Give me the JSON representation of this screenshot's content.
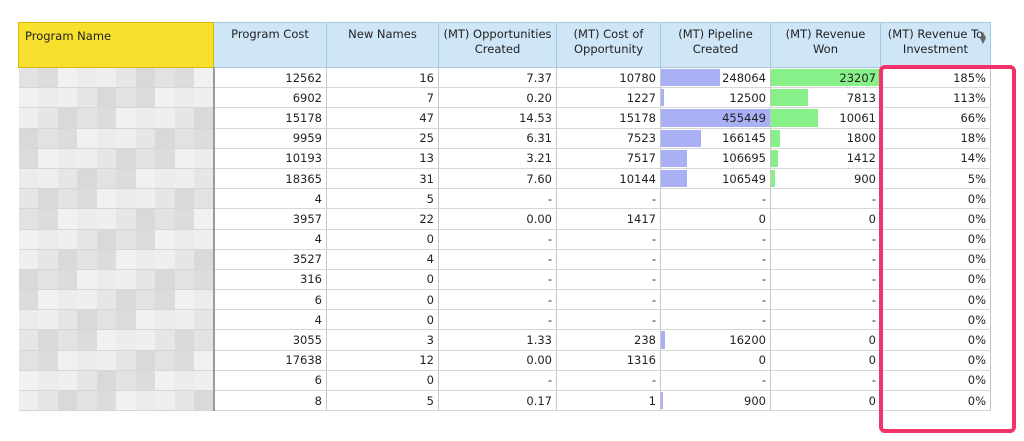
{
  "table": {
    "headers": {
      "name": "Program Name",
      "cost": "Program Cost",
      "names": "New Names",
      "opps": "(MT) Opportunities Created",
      "cost_opp": "(MT) Cost of Opportunity",
      "pipeline": "(MT) Pipeline Created",
      "revenue": "(MT) Revenue Won",
      "rti": "(MT) Revenue To Investment"
    },
    "rows": [
      {
        "cost": "12562",
        "names": "16",
        "opps": "7.37",
        "cost_opp": "10780",
        "pipeline": "248064",
        "pipeline_frac": 0.545,
        "revenue": "23207",
        "revenue_frac": 1.0,
        "rti": "185%"
      },
      {
        "cost": "6902",
        "names": "7",
        "opps": "0.20",
        "cost_opp": "1227",
        "pipeline": "12500",
        "pipeline_frac": 0.027,
        "revenue": "7813",
        "revenue_frac": 0.337,
        "rti": "113%"
      },
      {
        "cost": "15178",
        "names": "47",
        "opps": "14.53",
        "cost_opp": "15178",
        "pipeline": "455449",
        "pipeline_frac": 1.0,
        "revenue": "10061",
        "revenue_frac": 0.434,
        "rti": "66%"
      },
      {
        "cost": "9959",
        "names": "25",
        "opps": "6.31",
        "cost_opp": "7523",
        "pipeline": "166145",
        "pipeline_frac": 0.365,
        "revenue": "1800",
        "revenue_frac": 0.078,
        "rti": "18%"
      },
      {
        "cost": "10193",
        "names": "13",
        "opps": "3.21",
        "cost_opp": "7517",
        "pipeline": "106695",
        "pipeline_frac": 0.234,
        "revenue": "1412",
        "revenue_frac": 0.061,
        "rti": "14%"
      },
      {
        "cost": "18365",
        "names": "31",
        "opps": "7.60",
        "cost_opp": "10144",
        "pipeline": "106549",
        "pipeline_frac": 0.234,
        "revenue": "900",
        "revenue_frac": 0.039,
        "rti": "5%"
      },
      {
        "cost": "4",
        "names": "5",
        "opps": "-",
        "cost_opp": "-",
        "pipeline": "-",
        "pipeline_frac": 0,
        "revenue": "-",
        "revenue_frac": 0,
        "rti": "0%"
      },
      {
        "cost": "3957",
        "names": "22",
        "opps": "0.00",
        "cost_opp": "1417",
        "pipeline": "0",
        "pipeline_frac": 0,
        "revenue": "0",
        "revenue_frac": 0,
        "rti": "0%"
      },
      {
        "cost": "4",
        "names": "0",
        "opps": "-",
        "cost_opp": "-",
        "pipeline": "-",
        "pipeline_frac": 0,
        "revenue": "-",
        "revenue_frac": 0,
        "rti": "0%"
      },
      {
        "cost": "3527",
        "names": "4",
        "opps": "-",
        "cost_opp": "-",
        "pipeline": "-",
        "pipeline_frac": 0,
        "revenue": "-",
        "revenue_frac": 0,
        "rti": "0%"
      },
      {
        "cost": "316",
        "names": "0",
        "opps": "-",
        "cost_opp": "-",
        "pipeline": "-",
        "pipeline_frac": 0,
        "revenue": "-",
        "revenue_frac": 0,
        "rti": "0%"
      },
      {
        "cost": "6",
        "names": "0",
        "opps": "-",
        "cost_opp": "-",
        "pipeline": "-",
        "pipeline_frac": 0,
        "revenue": "-",
        "revenue_frac": 0,
        "rti": "0%"
      },
      {
        "cost": "4",
        "names": "0",
        "opps": "-",
        "cost_opp": "-",
        "pipeline": "-",
        "pipeline_frac": 0,
        "revenue": "-",
        "revenue_frac": 0,
        "rti": "0%"
      },
      {
        "cost": "3055",
        "names": "3",
        "opps": "1.33",
        "cost_opp": "238",
        "pipeline": "16200",
        "pipeline_frac": 0.036,
        "revenue": "0",
        "revenue_frac": 0,
        "rti": "0%"
      },
      {
        "cost": "17638",
        "names": "12",
        "opps": "0.00",
        "cost_opp": "1316",
        "pipeline": "0",
        "pipeline_frac": 0,
        "revenue": "0",
        "revenue_frac": 0,
        "rti": "0%"
      },
      {
        "cost": "6",
        "names": "0",
        "opps": "-",
        "cost_opp": "-",
        "pipeline": "-",
        "pipeline_frac": 0,
        "revenue": "-",
        "revenue_frac": 0,
        "rti": "0%"
      },
      {
        "cost": "8",
        "names": "5",
        "opps": "0.17",
        "cost_opp": "1",
        "pipeline": "900",
        "pipeline_frac": 0.002,
        "revenue": "0",
        "revenue_frac": 0,
        "rti": "0%"
      }
    ]
  },
  "colors": {
    "name_header": "#f7e12e",
    "header": "#cfe6f7",
    "pipeline_bar": "#aab0f6",
    "revenue_bar": "#88f088",
    "highlight": "#f2336a"
  },
  "icons": {
    "sort": "sort-arrows-icon"
  }
}
